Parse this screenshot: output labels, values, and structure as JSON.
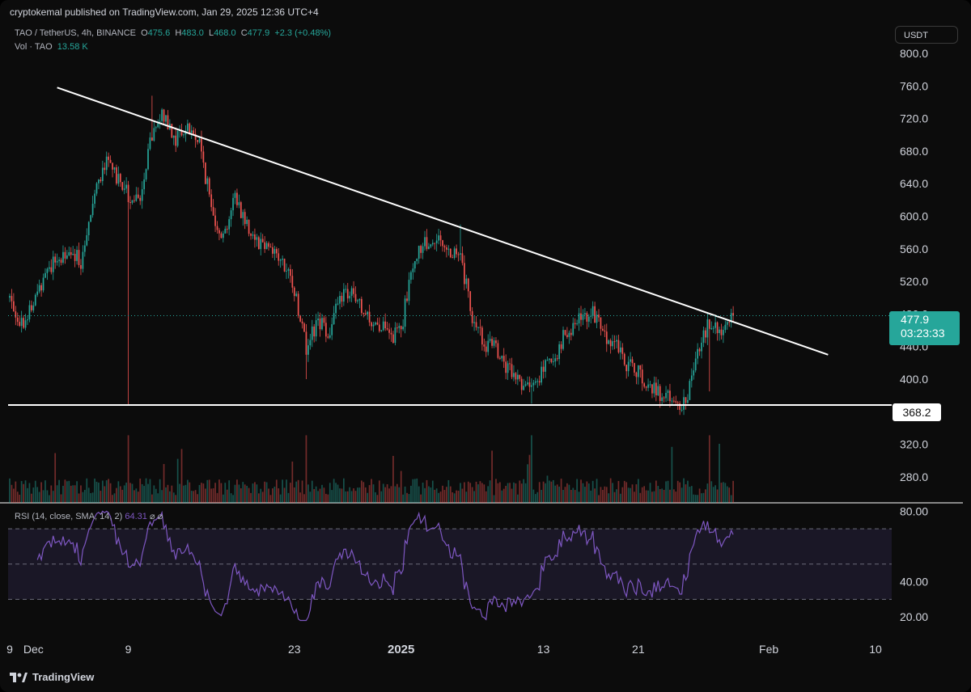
{
  "header": {
    "published_by": "cryptokemal published on TradingView.com, Jan 29, 2025 12:36 UTC+4"
  },
  "legend": {
    "symbol": "TAO / TetherUS, 4h, BINANCE",
    "open_label": "O",
    "open": "475.6",
    "high_label": "H",
    "high": "483.0",
    "low_label": "L",
    "low": "468.0",
    "close_label": "C",
    "close": "477.9",
    "change": "+2.3 (+0.48%)",
    "vol_label": "Vol · TAO",
    "vol_value": "13.58 K",
    "rsi_label": "RSI (14, close, SMA, 14, 2)",
    "rsi_value": "64.31",
    "rsi_icons": "⌀ ⌀"
  },
  "currency": "USDT",
  "price_label": {
    "price": "477.9",
    "countdown": "03:23:33"
  },
  "support_label": "368.2",
  "footer": {
    "brand": "TradingView"
  },
  "colors": {
    "up": "#26a69a",
    "down": "#ef5350",
    "rsi": "#7e57c2",
    "trendline": "#ffffff",
    "background": "#0c0c0c"
  },
  "chart_data": {
    "type": "candlestick",
    "symbol": "TAO / TetherUS",
    "timeframe": "4h",
    "exchange": "BINANCE",
    "price_axis_ticks": [
      "800.0",
      "760.0",
      "720.0",
      "680.0",
      "640.0",
      "600.0",
      "560.0",
      "520.0",
      "480.0",
      "440.0",
      "400.0",
      "360.0",
      "320.0",
      "280.0"
    ],
    "price_range": [
      270,
      810
    ],
    "rsi_axis_ticks": [
      "80.00",
      "40.00",
      "20.00"
    ],
    "rsi_range": [
      15,
      82
    ],
    "rsi_bands": [
      70,
      50,
      30
    ],
    "x_ticks": [
      {
        "label": "9",
        "date": "2024-11-29"
      },
      {
        "label": "Dec",
        "date": "2024-12-01"
      },
      {
        "label": "9",
        "date": "2024-12-09"
      },
      {
        "label": "23",
        "date": "2024-12-23"
      },
      {
        "label": "2025",
        "date": "2025-01-01"
      },
      {
        "label": "13",
        "date": "2025-01-13"
      },
      {
        "label": "21",
        "date": "2025-01-21"
      },
      {
        "label": "Feb",
        "date": "2025-02-01"
      },
      {
        "label": "10",
        "date": "2025-02-10"
      }
    ],
    "price_path": [
      {
        "date": "2024-11-29",
        "price": 500
      },
      {
        "date": "2024-11-30",
        "price": 470
      },
      {
        "date": "2024-12-01",
        "price": 490
      },
      {
        "date": "2024-12-02",
        "price": 535
      },
      {
        "date": "2024-12-03",
        "price": 545
      },
      {
        "date": "2024-12-04",
        "price": 560
      },
      {
        "date": "2024-12-05",
        "price": 545
      },
      {
        "date": "2024-12-06",
        "price": 625
      },
      {
        "date": "2024-12-07",
        "price": 665
      },
      {
        "date": "2024-12-08",
        "price": 650
      },
      {
        "date": "2024-12-09",
        "price": 625
      },
      {
        "date": "2024-12-10",
        "price": 615
      },
      {
        "date": "2024-12-11",
        "price": 700
      },
      {
        "date": "2024-12-12",
        "price": 725
      },
      {
        "date": "2024-12-13",
        "price": 695
      },
      {
        "date": "2024-12-14",
        "price": 710
      },
      {
        "date": "2024-12-15",
        "price": 690
      },
      {
        "date": "2024-12-16",
        "price": 610
      },
      {
        "date": "2024-12-17",
        "price": 575
      },
      {
        "date": "2024-12-18",
        "price": 625
      },
      {
        "date": "2024-12-19",
        "price": 590
      },
      {
        "date": "2024-12-20",
        "price": 570
      },
      {
        "date": "2024-12-21",
        "price": 565
      },
      {
        "date": "2024-12-22",
        "price": 540
      },
      {
        "date": "2024-12-23",
        "price": 510
      },
      {
        "date": "2024-12-24",
        "price": 440
      },
      {
        "date": "2024-12-25",
        "price": 470
      },
      {
        "date": "2024-12-26",
        "price": 460
      },
      {
        "date": "2024-12-27",
        "price": 505
      },
      {
        "date": "2024-12-28",
        "price": 500
      },
      {
        "date": "2024-12-29",
        "price": 475
      },
      {
        "date": "2024-12-30",
        "price": 470
      },
      {
        "date": "2024-12-31",
        "price": 450
      },
      {
        "date": "2025-01-01",
        "price": 460
      },
      {
        "date": "2025-01-02",
        "price": 545
      },
      {
        "date": "2025-01-03",
        "price": 565
      },
      {
        "date": "2025-01-04",
        "price": 575
      },
      {
        "date": "2025-01-05",
        "price": 560
      },
      {
        "date": "2025-01-06",
        "price": 550
      },
      {
        "date": "2025-01-07",
        "price": 475
      },
      {
        "date": "2025-01-08",
        "price": 445
      },
      {
        "date": "2025-01-09",
        "price": 435
      },
      {
        "date": "2025-01-10",
        "price": 410
      },
      {
        "date": "2025-01-11",
        "price": 400
      },
      {
        "date": "2025-01-12",
        "price": 385
      },
      {
        "date": "2025-01-13",
        "price": 415
      },
      {
        "date": "2025-01-14",
        "price": 430
      },
      {
        "date": "2025-01-15",
        "price": 460
      },
      {
        "date": "2025-01-16",
        "price": 470
      },
      {
        "date": "2025-01-17",
        "price": 485
      },
      {
        "date": "2025-01-18",
        "price": 455
      },
      {
        "date": "2025-01-19",
        "price": 445
      },
      {
        "date": "2025-01-20",
        "price": 420
      },
      {
        "date": "2025-01-21",
        "price": 410
      },
      {
        "date": "2025-01-22",
        "price": 390
      },
      {
        "date": "2025-01-23",
        "price": 380
      },
      {
        "date": "2025-01-24",
        "price": 370
      },
      {
        "date": "2025-01-25",
        "price": 370
      },
      {
        "date": "2025-01-26",
        "price": 440
      },
      {
        "date": "2025-01-27",
        "price": 470
      },
      {
        "date": "2025-01-28",
        "price": 455
      },
      {
        "date": "2025-01-29",
        "price": 477.9
      }
    ],
    "annotations": [
      {
        "kind": "trendline",
        "from": {
          "date": "2024-12-03",
          "price": 758
        },
        "to": {
          "date": "2025-02-06",
          "price": 430
        }
      },
      {
        "kind": "horizontal",
        "price": 368.2,
        "label": "368.2"
      },
      {
        "kind": "dotted",
        "price": 477.9
      }
    ]
  }
}
